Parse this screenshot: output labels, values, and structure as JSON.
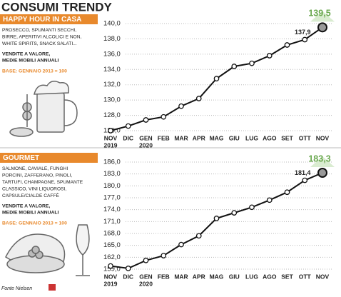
{
  "header": "CONSUMI TRENDY",
  "source": "Fonte Nielsen",
  "chart_data": [
    {
      "type": "line",
      "title": "HAPPY HOUR IN CASA",
      "description": [
        "PROSECCO, SPUMANTI SECCHI,",
        "BIRRE, APERITIVI ALCOLICI E NON,",
        "WHITE SPIRITS, SNACK SALATI..."
      ],
      "measure": [
        "VENDITE A VALORE,",
        "MEDIE MOBILI ANNUALI"
      ],
      "base": "BASE: GENNAIO 2013 = 100",
      "categories": [
        "NOV",
        "DIC",
        "GEN",
        "FEB",
        "MAR",
        "APR",
        "MAG",
        "GIU",
        "LUG",
        "AGO",
        "SET",
        "OTT",
        "NOV"
      ],
      "years": [
        "2019",
        null,
        "2020",
        null,
        null,
        null,
        null,
        null,
        null,
        null,
        null,
        null,
        null
      ],
      "values": [
        126.0,
        126.6,
        127.4,
        127.8,
        129.2,
        130.2,
        132.8,
        134.4,
        134.8,
        135.8,
        137.2,
        137.9,
        139.5
      ],
      "value_labels": [
        null,
        null,
        null,
        null,
        null,
        null,
        null,
        null,
        null,
        null,
        null,
        "137,9",
        "139,5"
      ],
      "color": "#111111",
      "highlight_color": "#6aa84f",
      "accent_color": "#e8892c",
      "ylim": [
        126,
        140
      ],
      "yticks": [
        {
          "value": 126,
          "label": "126,0"
        },
        {
          "value": 128,
          "label": "128,0"
        },
        {
          "value": 130,
          "label": "130,0"
        },
        {
          "value": 132,
          "label": "132,0"
        },
        {
          "value": 134,
          "label": "134,0"
        },
        {
          "value": 136,
          "label": "136,0"
        },
        {
          "value": 138,
          "label": "138,0"
        },
        {
          "value": 140,
          "label": "140,0"
        }
      ],
      "grid": true
    },
    {
      "type": "line",
      "title": "GOURMET",
      "description": [
        "SALMONE, CAVIALE, FUNGHI",
        "PORCINI, ZAFFERANO, PINOLI,",
        "TARTUFI, CHAMPAGNE, SPUMANTE",
        "CLASSICO, VINI LIQUOROSI,",
        "CAPSULE/CIALDE CAFFÈ"
      ],
      "measure": [
        "VENDITE A VALORE,",
        "MEDIE MOBILI ANNUALI"
      ],
      "base": "BASE: GENNAIO 2013 = 100",
      "categories": [
        "NOV",
        "DIC",
        "GEN",
        "FEB",
        "MAR",
        "APR",
        "MAG",
        "GIU",
        "LUG",
        "AGO",
        "SET",
        "OTT",
        "NOV"
      ],
      "years": [
        "2019",
        null,
        "2020",
        null,
        null,
        null,
        null,
        null,
        null,
        null,
        null,
        null,
        null
      ],
      "values": [
        159.8,
        159.2,
        161.2,
        162.4,
        165.2,
        167.4,
        171.8,
        173.2,
        174.6,
        176.4,
        178.4,
        181.4,
        183.3
      ],
      "value_labels": [
        null,
        null,
        null,
        null,
        null,
        null,
        null,
        null,
        null,
        null,
        null,
        "181,4",
        "183,3"
      ],
      "color": "#111111",
      "highlight_color": "#6aa84f",
      "accent_color": "#e8892c",
      "ylim": [
        159,
        186
      ],
      "yticks": [
        {
          "value": 159,
          "label": "159,0"
        },
        {
          "value": 162,
          "label": "162,0"
        },
        {
          "value": 165,
          "label": "165,0"
        },
        {
          "value": 168,
          "label": "168,0"
        },
        {
          "value": 171,
          "label": "171,0"
        },
        {
          "value": 174,
          "label": "174,0"
        },
        {
          "value": 177,
          "label": "177,0"
        },
        {
          "value": 180,
          "label": "180,0"
        },
        {
          "value": 183,
          "label": "183,0"
        },
        {
          "value": 186,
          "label": "186,0"
        }
      ],
      "grid": true
    }
  ]
}
